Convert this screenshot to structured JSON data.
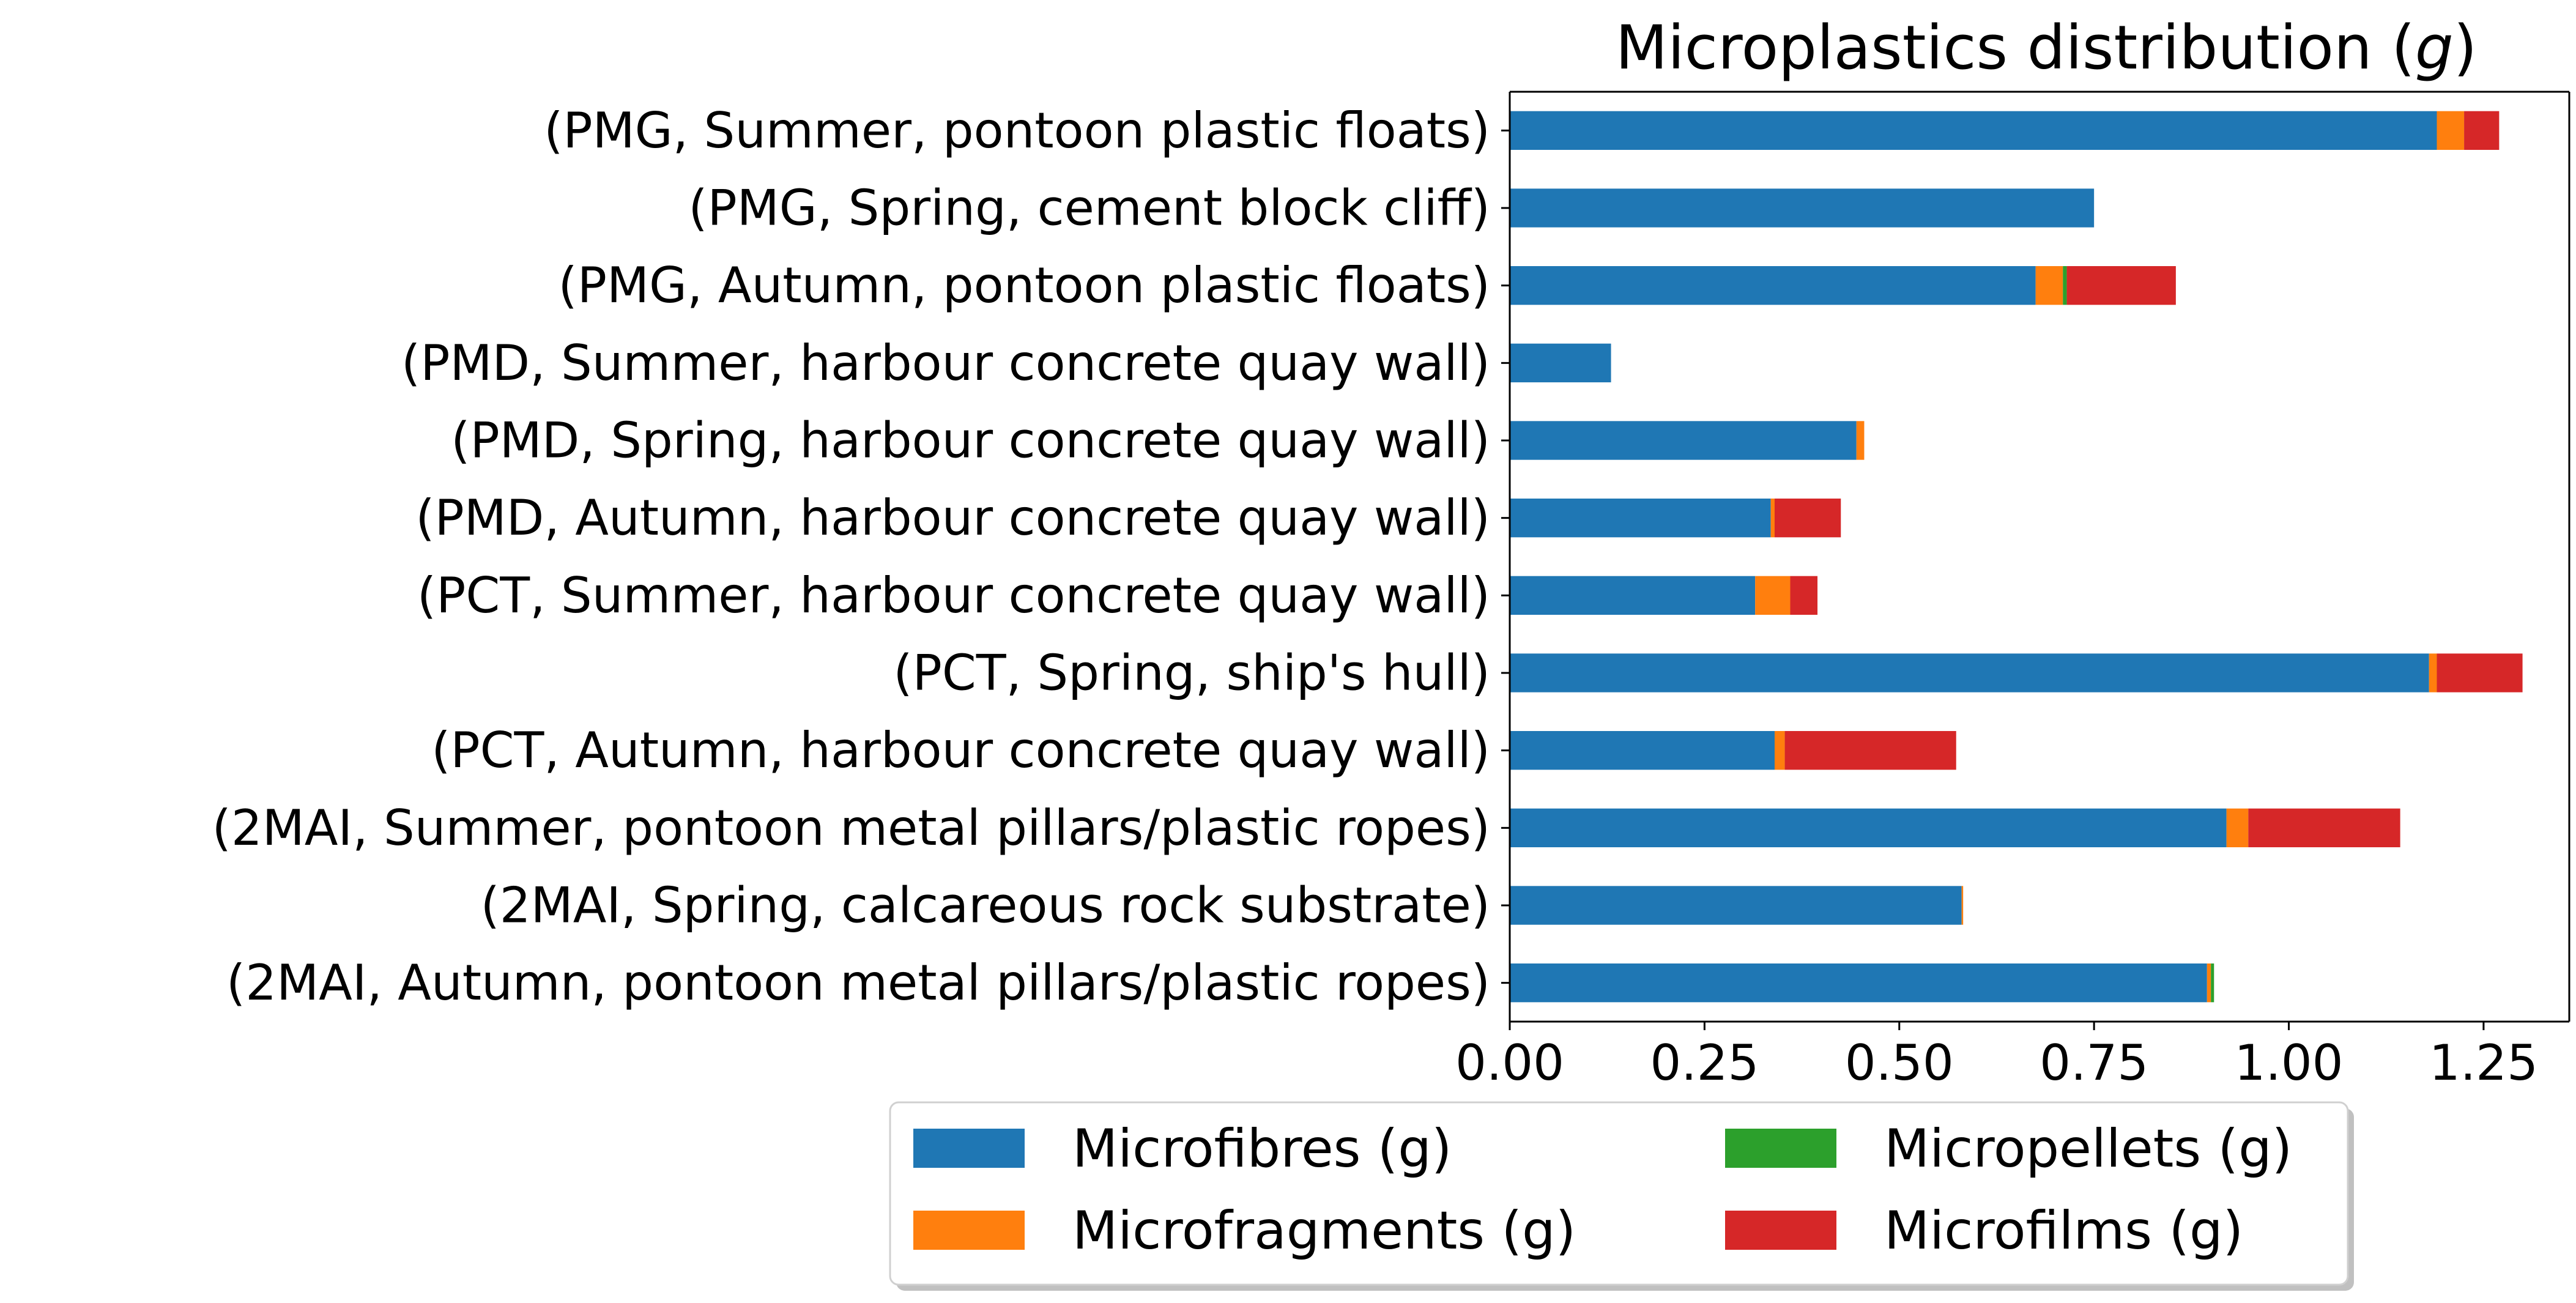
{
  "chart_data": {
    "type": "bar",
    "orientation": "horizontal",
    "stacked": true,
    "title": "Microplastics distribution (g)",
    "xlabel": "",
    "ylabel": "",
    "xlim": [
      0,
      1.36
    ],
    "xticks": [
      "0.00",
      "0.25",
      "0.50",
      "0.75",
      "1.00",
      "1.25"
    ],
    "grid": false,
    "legend_position": "bottom-center",
    "categories": [
      "(PMG, Summer, pontoon plastic floats)",
      "(PMG, Spring, cement block cliff)",
      "(PMG, Autumn, pontoon plastic floats)",
      "(PMD, Summer, harbour concrete quay wall)",
      "(PMD, Spring, harbour concrete quay wall)",
      "(PMD, Autumn, harbour concrete quay wall)",
      "(PCT, Summer, harbour concrete quay wall)",
      "(PCT, Spring, ship's hull)",
      "(PCT, Autumn, harbour concrete quay wall)",
      "(2MAI, Summer, pontoon metal pillars/plastic ropes)",
      "(2MAI, Spring, calcareous rock substrate)",
      "(2MAI, Autumn, pontoon metal pillars/plastic ropes)"
    ],
    "series": [
      {
        "name": "Microfibres (g)",
        "color": "#1f77b4",
        "values": [
          1.19,
          0.75,
          0.675,
          0.13,
          0.445,
          0.335,
          0.315,
          1.18,
          0.34,
          0.92,
          0.58,
          0.895
        ]
      },
      {
        "name": "Microfragments (g)",
        "color": "#ff7f0e",
        "values": [
          0.035,
          0.0,
          0.035,
          0.0,
          0.01,
          0.005,
          0.045,
          0.01,
          0.013,
          0.028,
          0.002,
          0.005
        ]
      },
      {
        "name": "Micropellets (g)",
        "color": "#2ca02c",
        "values": [
          0.0,
          0.0,
          0.005,
          0.0,
          0.0,
          0.0,
          0.0,
          0.0,
          0.0,
          0.0,
          0.0,
          0.004
        ]
      },
      {
        "name": "Microfilms (g)",
        "color": "#d62728",
        "values": [
          0.045,
          0.0,
          0.14,
          0.0,
          0.0,
          0.085,
          0.035,
          0.11,
          0.22,
          0.195,
          0.0,
          0.0
        ]
      }
    ]
  }
}
